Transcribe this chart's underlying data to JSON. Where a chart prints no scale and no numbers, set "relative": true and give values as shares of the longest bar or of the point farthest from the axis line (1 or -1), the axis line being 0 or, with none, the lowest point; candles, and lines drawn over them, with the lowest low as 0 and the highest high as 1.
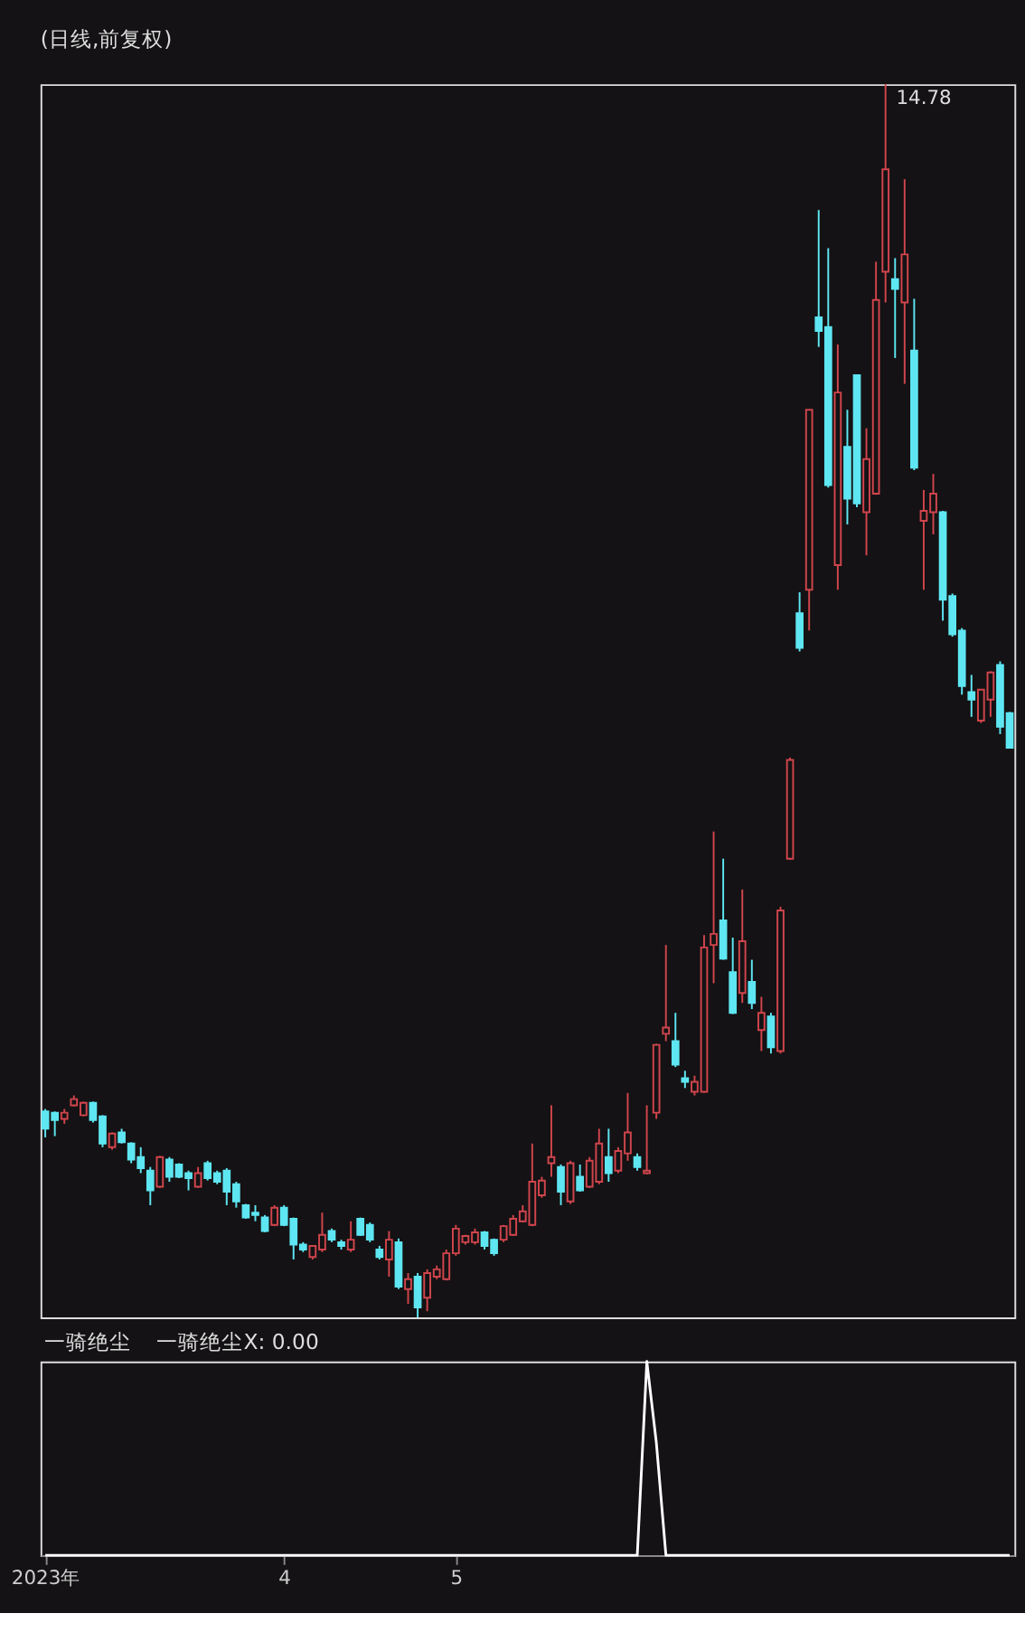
{
  "chart_data": [
    {
      "type": "candlestick",
      "title": "(日线,前复权)",
      "relative": true,
      "tick_labels": false,
      "categories": [
        null,
        null,
        null,
        null,
        null,
        null,
        null,
        null,
        null,
        null,
        null,
        null,
        null,
        null,
        null,
        null,
        null,
        null,
        null,
        null,
        null,
        null,
        null,
        null,
        null,
        null,
        null,
        null,
        null,
        null,
        null,
        null,
        null,
        null,
        null,
        null,
        null,
        null,
        null,
        null,
        null,
        null,
        null,
        null,
        null,
        null,
        null,
        null,
        null,
        null,
        null,
        null,
        null,
        null,
        null,
        null,
        null,
        null,
        null,
        null,
        null,
        null,
        null,
        null,
        null,
        null,
        null,
        null,
        null,
        null,
        null,
        null,
        null,
        null,
        null,
        null,
        null,
        null,
        null,
        null,
        null,
        null,
        null,
        null,
        null,
        null,
        null,
        null,
        null,
        null,
        null,
        null,
        null,
        null,
        null,
        null,
        null,
        null,
        null,
        null,
        null,
        null
      ],
      "ohlc": [
        [
          0.167,
          0.169,
          0.146,
          0.153
        ],
        [
          0.166,
          0.167,
          0.147,
          0.16
        ],
        [
          0.161,
          0.169,
          0.157,
          0.166
        ],
        [
          0.172,
          0.18,
          0.171,
          0.177
        ],
        [
          0.164,
          0.175,
          0.163,
          0.174
        ],
        [
          0.174,
          0.175,
          0.158,
          0.16
        ],
        [
          0.163,
          0.164,
          0.138,
          0.141
        ],
        [
          0.138,
          0.15,
          0.136,
          0.149
        ],
        [
          0.15,
          0.153,
          0.141,
          0.142
        ],
        [
          0.141,
          0.142,
          0.125,
          0.128
        ],
        [
          0.13,
          0.138,
          0.117,
          0.121
        ],
        [
          0.119,
          0.122,
          0.091,
          0.103
        ],
        [
          0.106,
          0.131,
          0.105,
          0.13
        ],
        [
          0.128,
          0.13,
          0.11,
          0.114
        ],
        [
          0.124,
          0.125,
          0.113,
          0.114
        ],
        [
          0.117,
          0.119,
          0.103,
          0.113
        ],
        [
          0.106,
          0.122,
          0.105,
          0.117
        ],
        [
          0.125,
          0.127,
          0.111,
          0.113
        ],
        [
          0.117,
          0.119,
          0.108,
          0.11
        ],
        [
          0.119,
          0.121,
          0.091,
          0.102
        ],
        [
          0.108,
          0.11,
          0.089,
          0.094
        ],
        [
          0.091,
          0.092,
          0.08,
          0.081
        ],
        [
          0.085,
          0.091,
          0.078,
          0.083
        ],
        [
          0.081,
          0.083,
          0.069,
          0.07
        ],
        [
          0.075,
          0.091,
          0.074,
          0.089
        ],
        [
          0.089,
          0.091,
          0.074,
          0.075
        ],
        [
          0.08,
          0.081,
          0.047,
          0.059
        ],
        [
          0.059,
          0.061,
          0.053,
          0.055
        ],
        [
          0.049,
          0.058,
          0.047,
          0.058
        ],
        [
          0.055,
          0.085,
          0.053,
          0.067
        ],
        [
          0.07,
          0.072,
          0.061,
          0.063
        ],
        [
          0.061,
          0.063,
          0.055,
          0.058
        ],
        [
          0.055,
          0.078,
          0.053,
          0.063
        ],
        [
          0.08,
          0.081,
          0.066,
          0.067
        ],
        [
          0.075,
          0.077,
          0.061,
          0.063
        ],
        [
          0.055,
          0.058,
          0.047,
          0.049
        ],
        [
          0.047,
          0.07,
          0.033,
          0.063
        ],
        [
          0.061,
          0.064,
          0.023,
          0.025
        ],
        [
          0.023,
          0.036,
          0.011,
          0.031
        ],
        [
          0.033,
          0.036,
          0.0,
          0.008
        ],
        [
          0.016,
          0.039,
          0.005,
          0.036
        ],
        [
          0.033,
          0.042,
          0.031,
          0.039
        ],
        [
          0.031,
          0.055,
          0.03,
          0.052
        ],
        [
          0.052,
          0.075,
          0.05,
          0.072
        ],
        [
          0.061,
          0.067,
          0.059,
          0.066
        ],
        [
          0.061,
          0.072,
          0.059,
          0.069
        ],
        [
          0.069,
          0.07,
          0.055,
          0.058
        ],
        [
          0.063,
          0.064,
          0.05,
          0.052
        ],
        [
          0.063,
          0.075,
          0.061,
          0.074
        ],
        [
          0.067,
          0.083,
          0.066,
          0.08
        ],
        [
          0.078,
          0.091,
          0.077,
          0.086
        ],
        [
          0.075,
          0.141,
          0.074,
          0.11
        ],
        [
          0.099,
          0.114,
          0.097,
          0.111
        ],
        [
          0.125,
          0.172,
          0.114,
          0.13
        ],
        [
          0.122,
          0.124,
          0.091,
          0.102
        ],
        [
          0.094,
          0.127,
          0.092,
          0.125
        ],
        [
          0.114,
          0.124,
          0.102,
          0.103
        ],
        [
          0.106,
          0.13,
          0.105,
          0.127
        ],
        [
          0.11,
          0.153,
          0.108,
          0.141
        ],
        [
          0.13,
          0.153,
          0.11,
          0.117
        ],
        [
          0.119,
          0.138,
          0.117,
          0.135
        ],
        [
          0.133,
          0.182,
          0.127,
          0.15
        ],
        [
          0.13,
          0.133,
          0.119,
          0.122
        ],
        [
          0.117,
          0.172,
          0.116,
          0.119
        ],
        [
          0.166,
          0.222,
          0.161,
          0.221
        ],
        [
          0.23,
          0.302,
          0.224,
          0.235
        ],
        [
          0.224,
          0.247,
          0.203,
          0.205
        ],
        [
          0.194,
          0.2,
          0.186,
          0.191
        ],
        [
          0.183,
          0.196,
          0.18,
          0.191
        ],
        [
          0.183,
          0.31,
          0.182,
          0.3
        ],
        [
          0.302,
          0.394,
          0.271,
          0.311
        ],
        [
          0.322,
          0.372,
          0.29,
          0.291
        ],
        [
          0.28,
          0.308,
          0.246,
          0.247
        ],
        [
          0.263,
          0.347,
          0.255,
          0.305
        ],
        [
          0.272,
          0.29,
          0.25,
          0.255
        ],
        [
          0.233,
          0.26,
          0.216,
          0.247
        ],
        [
          0.244,
          0.247,
          0.214,
          0.219
        ],
        [
          0.216,
          0.333,
          0.214,
          0.33
        ],
        [
          0.372,
          0.454,
          0.371,
          0.452
        ],
        [
          0.571,
          0.588,
          0.54,
          0.543
        ],
        [
          0.59,
          0.736,
          0.557,
          0.736
        ],
        [
          0.811,
          0.898,
          0.787,
          0.8
        ],
        [
          0.803,
          0.867,
          0.673,
          0.675
        ],
        [
          0.61,
          0.789,
          0.59,
          0.75
        ],
        [
          0.706,
          0.736,
          0.643,
          0.664
        ],
        [
          0.764,
          0.764,
          0.657,
          0.66
        ],
        [
          0.653,
          0.721,
          0.618,
          0.696
        ],
        [
          0.668,
          0.856,
          0.667,
          0.825
        ],
        [
          0.848,
          1,
          0.823,
          0.931
        ],
        [
          0.842,
          0.859,
          0.778,
          0.834
        ],
        [
          0.823,
          0.923,
          0.757,
          0.862
        ],
        [
          0.784,
          0.826,
          0.687,
          0.689
        ],
        [
          0.646,
          0.671,
          0.59,
          0.654
        ],
        [
          0.653,
          0.684,
          0.635,
          0.668
        ],
        [
          0.653,
          0.654,
          0.565,
          0.582
        ],
        [
          0.585,
          0.587,
          0.552,
          0.554
        ],
        [
          0.557,
          0.559,
          0.505,
          0.512
        ],
        [
          0.507,
          0.521,
          0.487,
          0.501
        ],
        [
          0.484,
          0.509,
          0.482,
          0.509
        ],
        [
          0.501,
          0.524,
          0.487,
          0.523
        ],
        [
          0.529,
          0.532,
          0.473,
          0.479
        ],
        [
          0.49,
          0.491,
          0.462,
          0.462
        ]
      ],
      "colors": [
        "#5ee6f2",
        "#5ee6f2",
        "#d0454c",
        "#d0454c",
        "#d0454c",
        "#5ee6f2",
        "#5ee6f2",
        "#d0454c",
        "#5ee6f2",
        "#5ee6f2",
        "#5ee6f2",
        "#5ee6f2",
        "#d0454c",
        "#5ee6f2",
        "#5ee6f2",
        "#5ee6f2",
        "#d0454c",
        "#5ee6f2",
        "#5ee6f2",
        "#5ee6f2",
        "#5ee6f2",
        "#5ee6f2",
        "#5ee6f2",
        "#5ee6f2",
        "#d0454c",
        "#5ee6f2",
        "#5ee6f2",
        "#5ee6f2",
        "#d0454c",
        "#d0454c",
        "#5ee6f2",
        "#5ee6f2",
        "#d0454c",
        "#5ee6f2",
        "#5ee6f2",
        "#5ee6f2",
        "#d0454c",
        "#5ee6f2",
        "#d0454c",
        "#5ee6f2",
        "#d0454c",
        "#d0454c",
        "#d0454c",
        "#d0454c",
        "#d0454c",
        "#d0454c",
        "#5ee6f2",
        "#5ee6f2",
        "#d0454c",
        "#d0454c",
        "#d0454c",
        "#d0454c",
        "#d0454c",
        "#d0454c",
        "#5ee6f2",
        "#d0454c",
        "#5ee6f2",
        "#d0454c",
        "#d0454c",
        "#5ee6f2",
        "#d0454c",
        "#d0454c",
        "#5ee6f2",
        "#d0454c",
        "#d0454c",
        "#d0454c",
        "#5ee6f2",
        "#5ee6f2",
        "#d0454c",
        "#d0454c",
        "#d0454c",
        "#5ee6f2",
        "#5ee6f2",
        "#d0454c",
        "#5ee6f2",
        "#d0454c",
        "#5ee6f2",
        "#d0454c",
        "#d0454c",
        "#5ee6f2",
        "#d0454c",
        "#5ee6f2",
        "#5ee6f2",
        "#d0454c",
        "#5ee6f2",
        "#5ee6f2",
        "#d0454c",
        "#d0454c",
        "#d0454c",
        "#5ee6f2",
        "#d0454c",
        "#5ee6f2",
        "#d0454c",
        "#d0454c",
        "#5ee6f2",
        "#5ee6f2",
        "#5ee6f2",
        "#5ee6f2",
        "#d0454c",
        "#d0454c",
        "#5ee6f2",
        "#5ee6f2"
      ],
      "annotations": [
        "14.78"
      ]
    },
    {
      "type": "line",
      "title": "一骑绝尘",
      "annotations": [
        "一骑绝尘X: 0.00"
      ],
      "relative": true,
      "tick_labels": "x",
      "categories": [
        "2023年",
        null,
        null,
        null,
        null,
        null,
        null,
        null,
        null,
        null,
        null,
        null,
        null,
        null,
        null,
        null,
        null,
        null,
        null,
        null,
        null,
        null,
        null,
        null,
        null,
        "4",
        null,
        null,
        null,
        null,
        null,
        null,
        null,
        null,
        null,
        null,
        null,
        null,
        null,
        null,
        null,
        null,
        null,
        "5",
        null,
        null,
        null,
        null,
        null,
        null,
        null,
        null,
        null,
        null,
        null,
        null,
        null,
        null,
        null,
        null,
        null,
        null,
        null,
        null,
        null,
        null,
        null,
        null,
        null,
        null,
        null,
        null,
        null,
        null,
        null,
        null,
        null,
        null,
        null,
        null,
        null,
        null,
        null,
        null,
        null,
        null,
        null,
        null,
        null,
        null,
        null,
        null,
        null,
        null,
        null,
        null,
        null,
        null,
        null,
        null,
        null,
        null
      ],
      "series": [
        {
          "color": "#ffffff",
          "values": [
            0,
            0,
            0,
            0,
            0,
            0,
            0,
            0,
            0,
            0,
            0,
            0,
            0,
            0,
            0,
            0,
            0,
            0,
            0,
            0,
            0,
            0,
            0,
            0,
            0,
            0,
            0,
            0,
            0,
            0,
            0,
            0,
            0,
            0,
            0,
            0,
            0,
            0,
            0,
            0,
            0,
            0,
            0,
            0,
            0,
            0,
            0,
            0,
            0,
            0,
            0,
            0,
            0,
            0,
            0,
            0,
            0,
            0,
            0,
            0,
            0,
            0,
            0,
            1,
            0.58,
            0,
            0,
            0,
            0,
            0,
            0,
            0,
            0,
            0,
            0,
            0,
            0,
            0,
            0,
            0,
            0,
            0,
            0,
            0,
            0,
            0,
            0,
            0,
            0,
            0,
            0,
            0,
            0,
            0,
            0,
            0,
            0,
            0,
            0,
            0,
            0,
            0
          ]
        }
      ]
    }
  ]
}
